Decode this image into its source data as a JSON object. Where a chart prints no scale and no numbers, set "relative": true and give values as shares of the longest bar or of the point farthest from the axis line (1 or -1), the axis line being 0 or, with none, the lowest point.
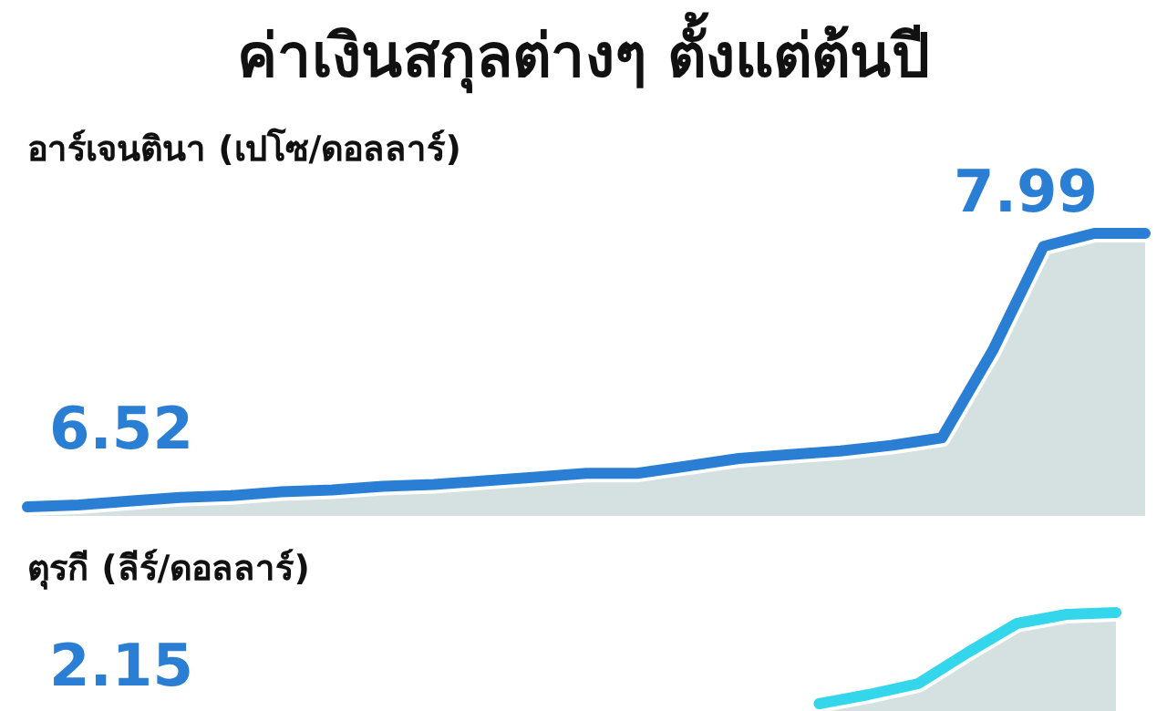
{
  "chart_data": [
    {
      "type": "area",
      "title": "ค่าเงินสกุลต่างๆ ตั้งแต่ต้นปี",
      "subtitle": "อาร์เจนตินา (เปโซ/ดอลลาร์)",
      "categories": [
        null,
        null,
        null,
        null,
        null,
        null,
        null,
        null,
        null,
        null,
        null,
        null,
        null,
        null,
        null,
        null,
        null,
        null,
        null,
        null,
        null,
        null,
        null
      ],
      "series": [
        {
          "color": "#2a7fd4",
          "values": [
            6.52,
            6.53,
            6.55,
            6.57,
            6.58,
            6.6,
            6.61,
            6.63,
            6.64,
            6.66,
            6.68,
            6.7,
            6.7,
            6.74,
            6.78,
            6.8,
            6.82,
            6.85,
            6.89,
            7.36,
            7.92,
            7.99,
            7.99
          ],
          "value_labels": [
            "6.52",
            null,
            null,
            null,
            null,
            null,
            null,
            null,
            null,
            null,
            null,
            null,
            null,
            null,
            null,
            null,
            null,
            null,
            null,
            null,
            null,
            null,
            "7.99"
          ]
        }
      ],
      "legend": false
    },
    {
      "type": "area",
      "subtitle": "ตุรกี (ลีร์/ดอลลาร์)",
      "categories": [
        null,
        null,
        null,
        null,
        null,
        null,
        null,
        null,
        null,
        null,
        null,
        null,
        null,
        null,
        null,
        null,
        null,
        null,
        null,
        null,
        null,
        null,
        null
      ],
      "series": [
        {
          "color": "#33d6ea",
          "values": [
            null,
            null,
            null,
            null,
            null,
            null,
            null,
            null,
            null,
            null,
            null,
            null,
            null,
            null,
            null,
            null,
            0.0,
            0.1,
            0.22,
            0.56,
            0.88,
            0.98,
            1
          ]
        }
      ],
      "relative": true,
      "annotations": [
        "2.15"
      ]
    }
  ]
}
